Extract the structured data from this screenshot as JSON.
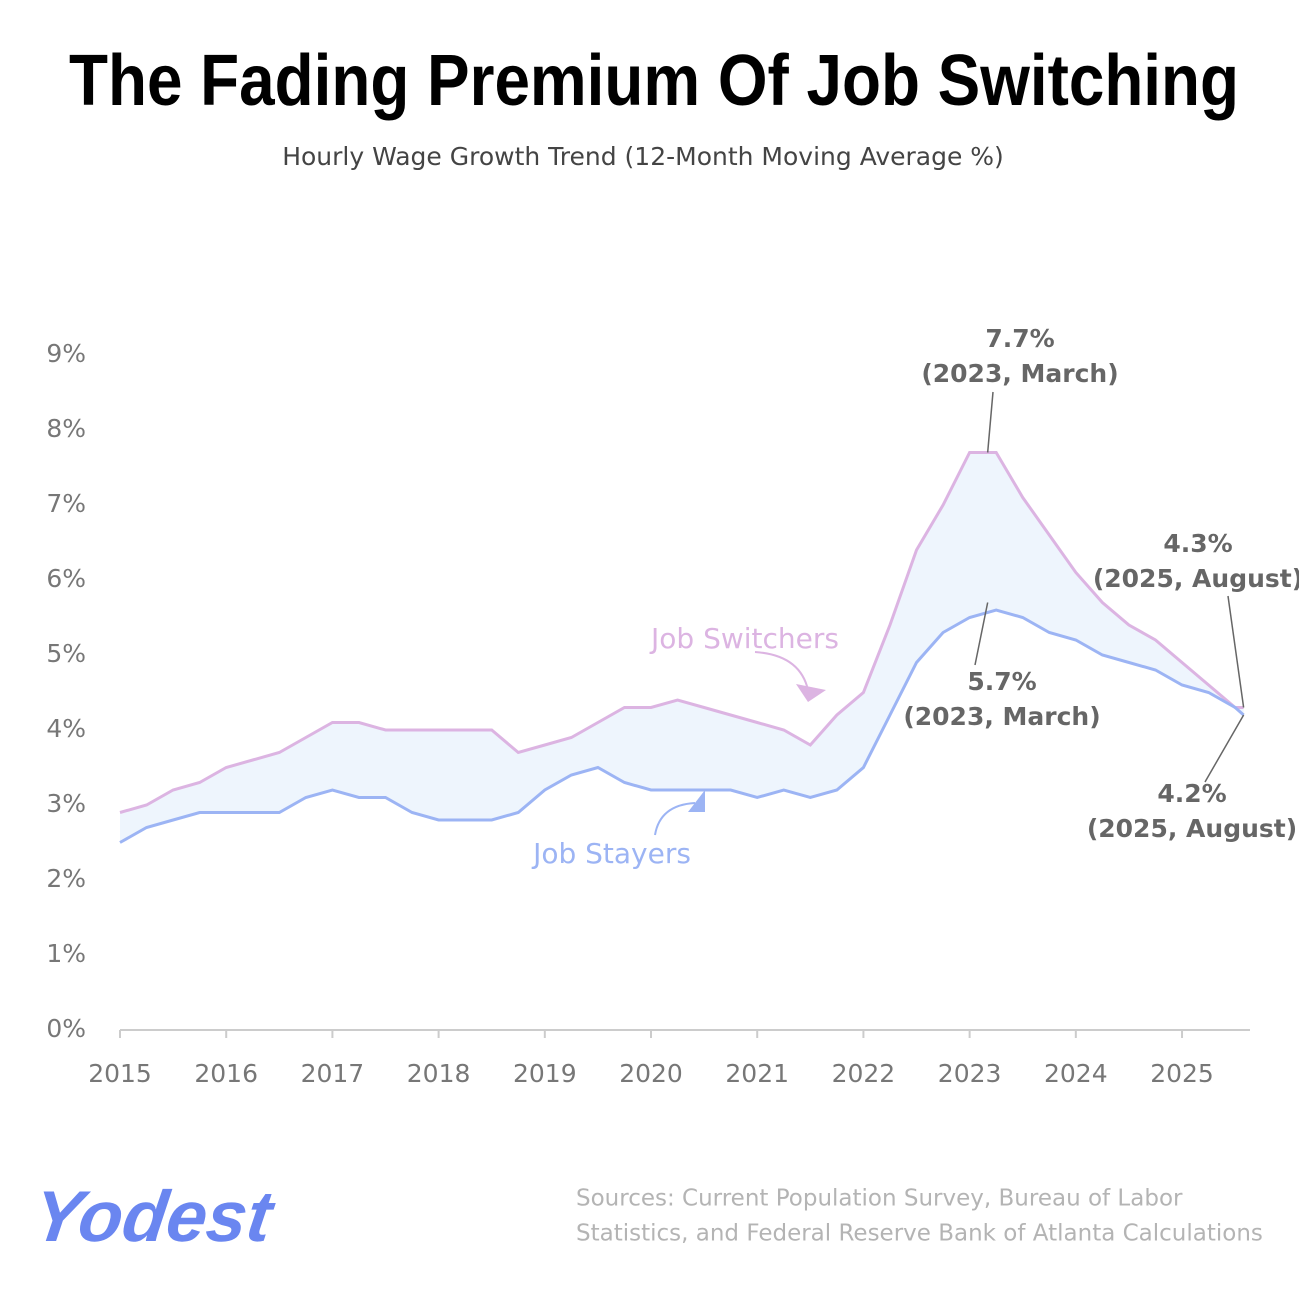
{
  "chart_data": {
    "type": "line",
    "title": "The Fading Premium Of Job Switching",
    "subtitle": "Hourly Wage Growth Trend (12-Month Moving Average %)",
    "x": [
      2015,
      2015.25,
      2015.5,
      2015.75,
      2016,
      2016.25,
      2016.5,
      2016.75,
      2017,
      2017.25,
      2017.5,
      2017.75,
      2018,
      2018.25,
      2018.5,
      2018.75,
      2019,
      2019.25,
      2019.5,
      2019.75,
      2020,
      2020.25,
      2020.5,
      2020.75,
      2021,
      2021.25,
      2021.5,
      2021.75,
      2022,
      2022.25,
      2022.5,
      2022.75,
      2023,
      2023.25,
      2023.5,
      2023.75,
      2024,
      2024.25,
      2024.5,
      2024.75,
      2025,
      2025.25,
      2025.5,
      2025.58
    ],
    "series": [
      {
        "name": "Job Switchers",
        "color": "#dcb4e2",
        "values": [
          2.9,
          3.0,
          3.2,
          3.3,
          3.5,
          3.6,
          3.7,
          3.9,
          4.1,
          4.1,
          4.0,
          4.0,
          4.0,
          4.0,
          4.0,
          3.7,
          3.8,
          3.9,
          4.1,
          4.3,
          4.3,
          4.4,
          4.3,
          4.2,
          4.1,
          4.0,
          3.8,
          4.2,
          4.5,
          5.4,
          6.4,
          7.0,
          7.7,
          7.7,
          7.1,
          6.6,
          6.1,
          5.7,
          5.4,
          5.2,
          4.9,
          4.6,
          4.3,
          4.3
        ]
      },
      {
        "name": "Job Stayers",
        "color": "#9cb4f4",
        "values": [
          2.5,
          2.7,
          2.8,
          2.9,
          2.9,
          2.9,
          2.9,
          3.1,
          3.2,
          3.1,
          3.1,
          2.9,
          2.8,
          2.8,
          2.8,
          2.9,
          3.2,
          3.4,
          3.5,
          3.3,
          3.2,
          3.2,
          3.2,
          3.2,
          3.1,
          3.2,
          3.1,
          3.2,
          3.5,
          4.2,
          4.9,
          5.3,
          5.5,
          5.6,
          5.5,
          5.3,
          5.2,
          5.0,
          4.9,
          4.8,
          4.6,
          4.5,
          4.3,
          4.2
        ]
      }
    ],
    "xlim": [
      2015,
      2025.64
    ],
    "xticks": [
      2015,
      2016,
      2017,
      2018,
      2019,
      2020,
      2021,
      2022,
      2023,
      2024,
      2025
    ],
    "ylim": [
      0,
      9
    ],
    "yticks": [
      {
        "value": 0,
        "label": "0%"
      },
      {
        "value": 1,
        "label": "1%"
      },
      {
        "value": 2,
        "label": "2%"
      },
      {
        "value": 3,
        "label": "3%"
      },
      {
        "value": 4,
        "label": "4%"
      },
      {
        "value": 5,
        "label": "5%"
      },
      {
        "value": 6,
        "label": "6%"
      },
      {
        "value": 7,
        "label": "7%"
      },
      {
        "value": 8,
        "label": "8%"
      },
      {
        "value": 9,
        "label": "9%"
      }
    ],
    "fill_between": "#eef5fd",
    "annotations": [
      {
        "series": 0,
        "x": 2023.17,
        "value": 7.7,
        "label": "7.7%",
        "note": "(2023, March)"
      },
      {
        "series": 1,
        "x": 2023.17,
        "value": 5.7,
        "label": "5.7%",
        "note": "(2023, March)"
      },
      {
        "series": 0,
        "x": 2025.58,
        "value": 4.3,
        "label": "4.3%",
        "note": "(2025, August)"
      },
      {
        "series": 1,
        "x": 2025.58,
        "value": 4.2,
        "label": "4.2%",
        "note": "(2025, August)"
      }
    ]
  },
  "footer": {
    "logo": "Yodest",
    "source_lines": [
      "Sources: Current Population Survey, Bureau of Labor",
      "Statistics, and Federal Reserve Bank of Atlanta Calculations"
    ]
  }
}
